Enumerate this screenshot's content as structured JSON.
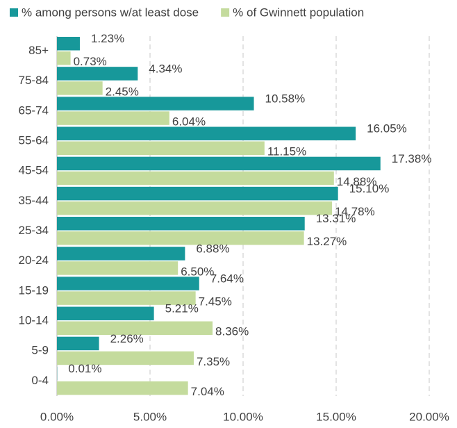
{
  "chart_data": {
    "type": "hbar",
    "categories": [
      "85+",
      "75-84",
      "65-74",
      "55-64",
      "45-54",
      "35-44",
      "25-34",
      "20-24",
      "15-19",
      "10-14",
      "5-9",
      "0-4"
    ],
    "series": [
      {
        "name": "% among persons w/at least dose",
        "color": "#17989a",
        "values": [
          1.23,
          4.34,
          10.58,
          16.05,
          17.38,
          15.1,
          13.31,
          6.88,
          7.64,
          5.21,
          2.26,
          0.01
        ],
        "value_labels": [
          "1.23%",
          "4.34%",
          "10.58%",
          "16.05%",
          "17.38%",
          "15.10%",
          "13.31%",
          "6.88%",
          "7.64%",
          "5.21%",
          "2.26%",
          "0.01%"
        ]
      },
      {
        "name": "% of Gwinnett population",
        "color": "#c4db9d",
        "values": [
          0.73,
          2.45,
          6.04,
          11.15,
          14.88,
          14.78,
          13.27,
          6.5,
          7.45,
          8.36,
          7.35,
          7.04
        ],
        "value_labels": [
          "0.73%",
          "2.45%",
          "6.04%",
          "11.15%",
          "14.88%",
          "14.78%",
          "13.27%",
          "6.50%",
          "7.45%",
          "8.36%",
          "7.35%",
          "7.04%"
        ]
      }
    ],
    "xlim": [
      0,
      20
    ],
    "xticks": [
      {
        "value": 0,
        "label": "0.00%"
      },
      {
        "value": 5,
        "label": "5.00%"
      },
      {
        "value": 10,
        "label": "10.00%"
      },
      {
        "value": 15,
        "label": "15.00%"
      },
      {
        "value": 20,
        "label": "20.00%"
      }
    ],
    "grid": true
  }
}
